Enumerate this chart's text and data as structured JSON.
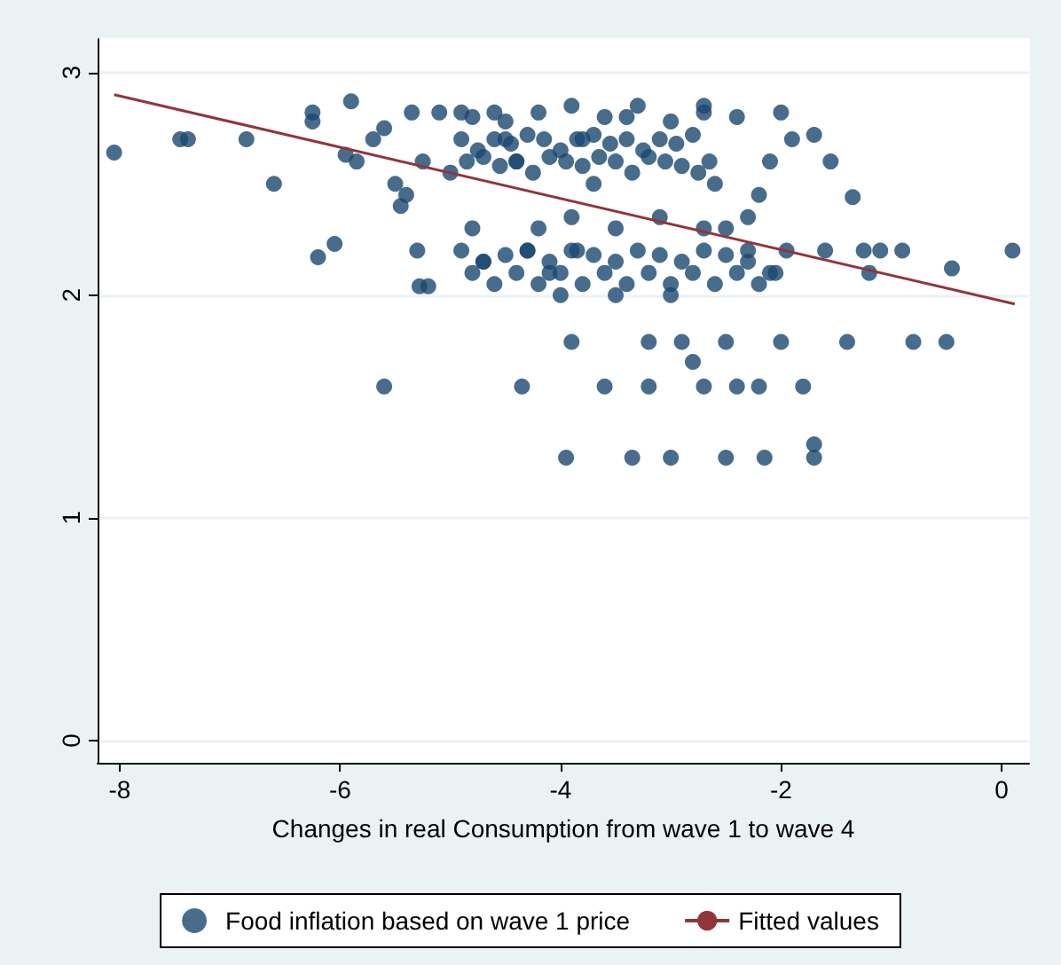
{
  "chart_data": {
    "type": "scatter",
    "xlabel": "Changes in real Consumption from wave 1 to wave 4",
    "xlim": [
      -8.2,
      0.25
    ],
    "xticks": [
      -8,
      -6,
      -4,
      -2,
      0
    ],
    "ylim": [
      -0.1,
      3.15
    ],
    "yticks": [
      0,
      1,
      2,
      3
    ],
    "grid": "y",
    "legend": "bottom",
    "marker": "circle",
    "series": [
      {
        "name": "Food inflation based on wave 1 price",
        "color": "#1a476f",
        "x": [
          -8.05,
          -7.45,
          -7.38,
          -6.85,
          -6.6,
          -6.25,
          -6.25,
          -6.2,
          -6.05,
          -5.95,
          -5.9,
          -5.85,
          -5.6,
          -5.7,
          -5.6,
          -5.5,
          -5.45,
          -5.4,
          -5.35,
          -5.3,
          -5.28,
          -5.2,
          -5.25,
          -5.1,
          -5.0,
          -4.9,
          -4.8,
          -4.7,
          -4.6,
          -4.5,
          -4.4,
          -4.35,
          -4.3,
          -4.2,
          -4.1,
          -4.0,
          -3.95,
          -3.9,
          -3.85,
          -3.8,
          -3.7,
          -3.6,
          -3.5,
          -3.4,
          -3.35,
          -3.2,
          -3.2,
          -3.0,
          -3.0,
          -2.9,
          -2.8,
          -2.7,
          -2.5,
          -2.5,
          -2.4,
          -2.2,
          -2.15,
          -2.0,
          -1.7,
          -1.7,
          -1.8,
          -1.4,
          -0.8,
          -0.5,
          0.1,
          -0.45,
          -0.9,
          -1.1,
          -1.2,
          -1.25,
          -1.35,
          -1.55,
          -1.7,
          -1.9,
          -1.6,
          -2.0,
          -2.1,
          -2.2,
          -2.3,
          -2.5,
          -2.7,
          -4.9,
          -4.75,
          -4.6,
          -4.45,
          -4.3,
          -4.15,
          -4.0,
          -3.85,
          -3.7,
          -3.55,
          -3.4,
          -3.25,
          -3.1,
          -2.95,
          -2.8,
          -2.65,
          -4.85,
          -4.7,
          -4.55,
          -4.4,
          -4.25,
          -4.1,
          -3.95,
          -3.8,
          -3.65,
          -3.5,
          -3.35,
          -3.2,
          -3.05,
          -2.9,
          -2.75,
          -2.6,
          -4.8,
          -4.5,
          -4.2,
          -3.9,
          -3.6,
          -3.3,
          -3.0,
          -2.7,
          -2.4,
          -4.9,
          -4.7,
          -4.5,
          -4.3,
          -4.1,
          -3.9,
          -3.7,
          -3.5,
          -3.3,
          -3.1,
          -2.9,
          -2.7,
          -2.5,
          -2.3,
          -2.1,
          -1.95,
          -4.8,
          -4.6,
          -4.4,
          -4.2,
          -4.0,
          -3.8,
          -3.6,
          -3.4,
          -3.2,
          -3.0,
          -2.8,
          -2.6,
          -2.4,
          -2.2,
          -2.05,
          -3.9,
          -3.5,
          -3.1,
          -2.7,
          -2.3
        ],
        "values": [
          2.64,
          2.7,
          2.7,
          2.7,
          2.5,
          2.82,
          2.78,
          2.17,
          2.23,
          2.63,
          2.87,
          2.6,
          1.59,
          2.7,
          2.75,
          2.5,
          2.4,
          2.45,
          2.82,
          2.2,
          2.04,
          2.04,
          2.6,
          2.82,
          2.55,
          2.82,
          2.3,
          2.15,
          2.82,
          2.7,
          2.6,
          1.59,
          2.2,
          2.3,
          2.1,
          2.0,
          1.27,
          1.79,
          2.2,
          2.7,
          2.5,
          1.59,
          2.0,
          2.8,
          1.27,
          1.79,
          1.59,
          1.27,
          2.0,
          1.79,
          1.7,
          1.59,
          1.27,
          1.79,
          1.59,
          1.59,
          1.27,
          1.79,
          1.33,
          1.27,
          1.59,
          1.79,
          1.79,
          1.79,
          2.2,
          2.12,
          2.2,
          2.2,
          2.1,
          2.2,
          2.44,
          2.6,
          2.72,
          2.7,
          2.2,
          2.82,
          2.6,
          2.45,
          2.2,
          2.3,
          2.85,
          2.7,
          2.65,
          2.7,
          2.68,
          2.72,
          2.7,
          2.65,
          2.7,
          2.72,
          2.68,
          2.7,
          2.65,
          2.7,
          2.68,
          2.72,
          2.6,
          2.6,
          2.62,
          2.58,
          2.6,
          2.55,
          2.62,
          2.6,
          2.58,
          2.62,
          2.6,
          2.55,
          2.62,
          2.6,
          2.58,
          2.55,
          2.5,
          2.8,
          2.78,
          2.82,
          2.85,
          2.8,
          2.85,
          2.78,
          2.82,
          2.8,
          2.2,
          2.15,
          2.18,
          2.2,
          2.15,
          2.2,
          2.18,
          2.15,
          2.2,
          2.18,
          2.15,
          2.2,
          2.18,
          2.15,
          2.1,
          2.2,
          2.1,
          2.05,
          2.1,
          2.05,
          2.1,
          2.05,
          2.1,
          2.05,
          2.1,
          2.05,
          2.1,
          2.05,
          2.1,
          2.05,
          2.1,
          2.35,
          2.3,
          2.35,
          2.3,
          2.35
        ]
      },
      {
        "name": "Fitted values",
        "color": "#90353b",
        "type": "line",
        "marker": "none",
        "x": [
          -8.05,
          0.12
        ],
        "values": [
          2.9,
          1.96
        ]
      }
    ]
  }
}
